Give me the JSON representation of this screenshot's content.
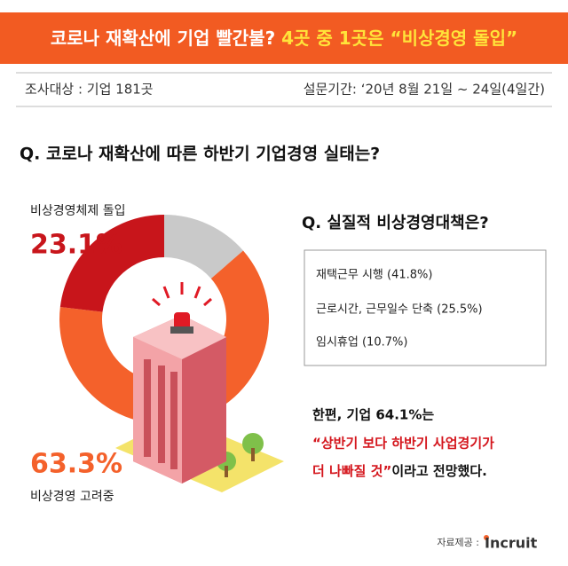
{
  "header": {
    "title_main": "코로나 재확산에 기업 빨간불?",
    "title_highlight": "4곳 중 1곳은 “비상경영 돌입”"
  },
  "survey": {
    "target": "조사대상 : 기업 181곳",
    "period": "설문기간: ‘20년 8월 21일 ~ 24일(4일간)"
  },
  "chart_data": {
    "type": "donut",
    "title": "Q. 코로나 재확산에 따른 하반기 기업경영 실태는?",
    "categories": [
      "비상경영체제 돌입",
      "비상경영 고려중",
      null
    ],
    "values": [
      23.1,
      63.3,
      13.6
    ],
    "value_labels": [
      "23.1%",
      "63.3%",
      null
    ],
    "colors": [
      "#c8151b",
      "#f4612b",
      "#c9c9c9"
    ]
  },
  "measures": {
    "title": "Q. 실질적 비상경영대책은?",
    "items": [
      "재택근무 시행 (41.8%)",
      "근로시간, 근무일수 단축 (25.5%)",
      "임시휴업 (10.7%)"
    ]
  },
  "conclusion": {
    "line1": "한편, 기업 64.1%는",
    "line2": "“상반기 보다 하반기 사업경기가",
    "line3_red": "더 나빠질 것”",
    "line3_black": "이라고 전망했다."
  },
  "source": {
    "label": "자료제공 :",
    "logo": "Incruit"
  }
}
